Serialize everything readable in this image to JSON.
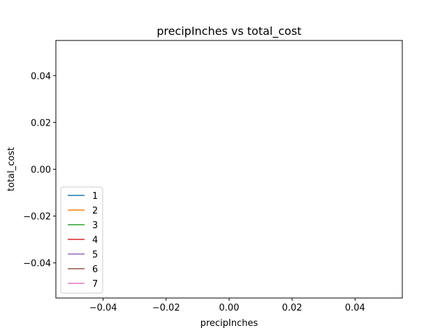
{
  "chart_data": {
    "type": "line",
    "title": "precipInches vs total_cost",
    "xlabel": "precipInches",
    "ylabel": "total_cost",
    "xlim": [
      -0.055,
      0.055
    ],
    "ylim": [
      -0.055,
      0.055
    ],
    "x_ticks": [
      -0.04,
      -0.02,
      0.0,
      0.02,
      0.04
    ],
    "x_tick_labels": [
      "−0.04",
      "−0.02",
      "0.00",
      "0.02",
      "0.04"
    ],
    "y_ticks": [
      -0.04,
      -0.02,
      0.0,
      0.02,
      0.04
    ],
    "y_tick_labels": [
      "−0.04",
      "−0.02",
      "0.00",
      "0.02",
      "0.04"
    ],
    "grid": false,
    "legend_position": "lower-left",
    "series": [
      {
        "name": "1",
        "color": "#1f77b4",
        "x": [],
        "y": []
      },
      {
        "name": "2",
        "color": "#ff7f0e",
        "x": [],
        "y": []
      },
      {
        "name": "3",
        "color": "#2ca02c",
        "x": [],
        "y": []
      },
      {
        "name": "4",
        "color": "#d62728",
        "x": [],
        "y": []
      },
      {
        "name": "5",
        "color": "#9467bd",
        "x": [],
        "y": []
      },
      {
        "name": "6",
        "color": "#8c564b",
        "x": [],
        "y": []
      },
      {
        "name": "7",
        "color": "#e377c2",
        "x": [],
        "y": []
      }
    ]
  }
}
